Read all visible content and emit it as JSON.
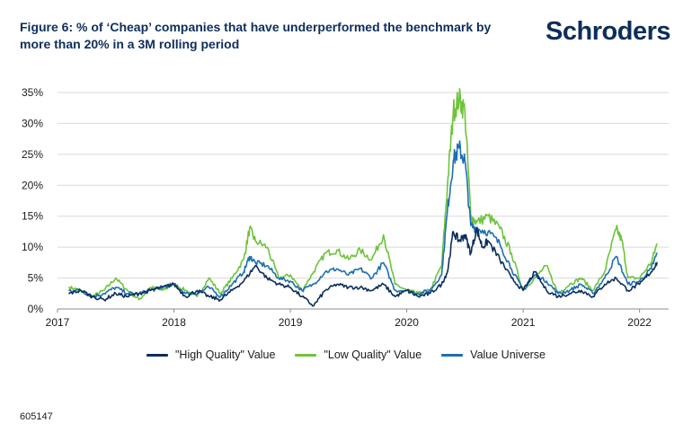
{
  "header": {
    "title": "Figure 6: % of ‘Cheap’ companies that have underperformed the benchmark by more than 20% in a 3M rolling period",
    "brand": "Schroders"
  },
  "footer": {
    "code": "605147"
  },
  "colors": {
    "high": "#0d2e5c",
    "low": "#6dc43a",
    "universe": "#1d6fb3",
    "grid": "#d9d9d9"
  },
  "chart_data": {
    "type": "line",
    "title": "Figure 6: % of ‘Cheap’ companies that have underperformed the benchmark by more than 20% in a 3M rolling period",
    "xlabel": "",
    "ylabel": "",
    "xlim": [
      2017.0,
      2022.25
    ],
    "ylim": [
      0,
      35
    ],
    "x_ticks": [
      2017,
      2018,
      2019,
      2020,
      2021,
      2022
    ],
    "x_tick_labels": [
      "2017",
      "2018",
      "2019",
      "2020",
      "2021",
      "2022"
    ],
    "y_ticks": [
      0,
      5,
      10,
      15,
      20,
      25,
      30,
      35
    ],
    "y_tick_labels": [
      "0%",
      "5%",
      "10%",
      "15%",
      "20%",
      "25%",
      "30%",
      "35%"
    ],
    "grid": true,
    "legend_position": "bottom",
    "series": [
      {
        "name": "\"High Quality\" Value",
        "color": "#0d2e5c",
        "x": [
          2017.1,
          2017.2,
          2017.3,
          2017.4,
          2017.5,
          2017.6,
          2017.7,
          2017.8,
          2017.9,
          2018.0,
          2018.1,
          2018.2,
          2018.3,
          2018.4,
          2018.5,
          2018.6,
          2018.7,
          2018.8,
          2018.9,
          2019.0,
          2019.1,
          2019.2,
          2019.3,
          2019.4,
          2019.5,
          2019.6,
          2019.7,
          2019.8,
          2019.9,
          2020.0,
          2020.1,
          2020.2,
          2020.3,
          2020.35,
          2020.4,
          2020.45,
          2020.5,
          2020.55,
          2020.6,
          2020.65,
          2020.7,
          2020.8,
          2020.9,
          2021.0,
          2021.1,
          2021.2,
          2021.3,
          2021.4,
          2021.5,
          2021.6,
          2021.7,
          2021.8,
          2021.9,
          2022.0,
          2022.1,
          2022.15
        ],
        "y": [
          2.5,
          3.0,
          2.0,
          1.5,
          2.5,
          2.0,
          2.5,
          3.0,
          3.5,
          4.0,
          2.0,
          3.0,
          2.0,
          1.5,
          3.0,
          4.5,
          7.0,
          5.0,
          4.0,
          3.5,
          2.0,
          0.5,
          3.0,
          4.0,
          3.5,
          3.5,
          3.0,
          4.0,
          2.0,
          3.0,
          2.0,
          2.5,
          4.0,
          6.0,
          12.5,
          11.0,
          12.0,
          9.0,
          13.0,
          10.0,
          11.0,
          8.0,
          5.0,
          3.0,
          6.0,
          3.0,
          2.0,
          2.5,
          3.0,
          2.0,
          4.0,
          5.0,
          3.0,
          4.0,
          6.0,
          7.5
        ]
      },
      {
        "name": "\"Low Quality\" Value",
        "color": "#6dc43a",
        "x": [
          2017.1,
          2017.2,
          2017.3,
          2017.4,
          2017.5,
          2017.6,
          2017.7,
          2017.8,
          2017.9,
          2018.0,
          2018.1,
          2018.2,
          2018.3,
          2018.4,
          2018.5,
          2018.6,
          2018.65,
          2018.7,
          2018.8,
          2018.9,
          2019.0,
          2019.1,
          2019.2,
          2019.3,
          2019.4,
          2019.5,
          2019.6,
          2019.7,
          2019.8,
          2019.9,
          2020.0,
          2020.1,
          2020.2,
          2020.3,
          2020.35,
          2020.4,
          2020.45,
          2020.5,
          2020.55,
          2020.6,
          2020.7,
          2020.8,
          2020.9,
          2021.0,
          2021.1,
          2021.2,
          2021.3,
          2021.4,
          2021.5,
          2021.6,
          2021.7,
          2021.8,
          2021.85,
          2021.9,
          2022.0,
          2022.1,
          2022.15
        ],
        "y": [
          3.5,
          3.0,
          2.0,
          3.0,
          5.0,
          3.0,
          1.5,
          3.5,
          3.0,
          4.0,
          3.0,
          2.0,
          5.0,
          2.5,
          5.0,
          8.0,
          13.0,
          11.0,
          10.0,
          5.0,
          5.5,
          3.0,
          6.0,
          9.0,
          9.5,
          8.0,
          9.5,
          8.0,
          12.0,
          4.0,
          3.0,
          2.5,
          3.0,
          7.0,
          20.0,
          32.0,
          34.0,
          32.0,
          15.0,
          14.0,
          15.0,
          13.0,
          9.0,
          3.0,
          5.0,
          7.0,
          2.5,
          4.0,
          5.0,
          3.0,
          6.0,
          13.0,
          11.0,
          5.0,
          5.0,
          7.5,
          10.5
        ]
      },
      {
        "name": "Value Universe",
        "color": "#1d6fb3",
        "x": [
          2017.1,
          2017.2,
          2017.3,
          2017.4,
          2017.5,
          2017.6,
          2017.7,
          2017.8,
          2017.9,
          2018.0,
          2018.1,
          2018.2,
          2018.3,
          2018.4,
          2018.5,
          2018.6,
          2018.65,
          2018.7,
          2018.8,
          2018.9,
          2019.0,
          2019.1,
          2019.2,
          2019.3,
          2019.4,
          2019.5,
          2019.6,
          2019.7,
          2019.8,
          2019.9,
          2020.0,
          2020.1,
          2020.2,
          2020.3,
          2020.35,
          2020.4,
          2020.45,
          2020.5,
          2020.55,
          2020.6,
          2020.7,
          2020.8,
          2020.9,
          2021.0,
          2021.1,
          2021.2,
          2021.3,
          2021.4,
          2021.5,
          2021.6,
          2021.7,
          2021.8,
          2021.9,
          2022.0,
          2022.1,
          2022.15
        ],
        "y": [
          3.0,
          3.0,
          2.0,
          2.5,
          3.5,
          2.5,
          2.5,
          3.0,
          3.5,
          4.0,
          2.5,
          2.5,
          3.5,
          2.0,
          4.0,
          6.0,
          8.5,
          7.5,
          7.0,
          5.0,
          4.5,
          3.0,
          4.0,
          6.0,
          6.5,
          5.5,
          6.5,
          5.0,
          7.5,
          3.0,
          3.0,
          2.5,
          3.0,
          5.5,
          16.0,
          24.0,
          26.0,
          24.0,
          13.5,
          13.0,
          12.5,
          10.5,
          6.5,
          3.0,
          5.5,
          4.5,
          2.5,
          3.0,
          4.0,
          2.5,
          5.0,
          8.5,
          4.0,
          4.5,
          6.5,
          9.0
        ]
      }
    ]
  }
}
